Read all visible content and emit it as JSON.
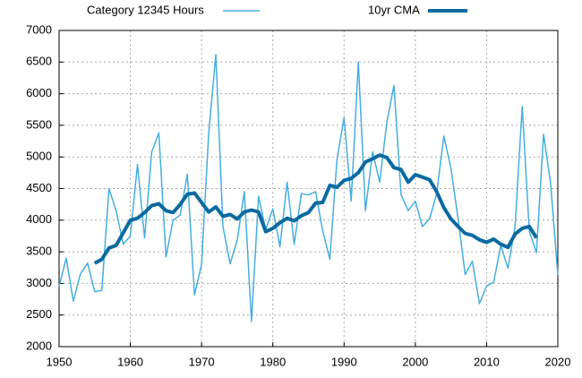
{
  "chart_data": {
    "type": "line",
    "series": [
      {
        "name": "Category 12345 Hours",
        "color": "#45aee0",
        "x": [
          1950,
          1951,
          1952,
          1953,
          1954,
          1955,
          1956,
          1957,
          1958,
          1959,
          1960,
          1961,
          1962,
          1963,
          1964,
          1965,
          1966,
          1967,
          1968,
          1969,
          1970,
          1971,
          1972,
          1973,
          1974,
          1975,
          1976,
          1977,
          1978,
          1979,
          1980,
          1981,
          1982,
          1983,
          1984,
          1985,
          1986,
          1987,
          1988,
          1989,
          1990,
          1991,
          1992,
          1993,
          1994,
          1995,
          1996,
          1997,
          1998,
          1999,
          2000,
          2001,
          2002,
          2003,
          2004,
          2005,
          2006,
          2007,
          2008,
          2009,
          2010,
          2011,
          2012,
          2013,
          2014,
          2015,
          2016,
          2017,
          2018,
          2019,
          2020
        ],
        "values": [
          2950,
          3400,
          2720,
          3150,
          3320,
          2870,
          2890,
          4500,
          4150,
          3620,
          3750,
          4880,
          3720,
          5080,
          5380,
          3420,
          4000,
          4080,
          4730,
          2820,
          3300,
          5380,
          6620,
          3900,
          3310,
          3680,
          4450,
          2400,
          4380,
          3850,
          4180,
          3580,
          4600,
          3620,
          4420,
          4400,
          4450,
          3830,
          3380,
          4960,
          5620,
          4300,
          6500,
          4150,
          5080,
          4600,
          5550,
          6130,
          4400,
          4150,
          4300,
          3900,
          4020,
          4420,
          5330,
          4820,
          4020,
          3140,
          3350,
          2680,
          2960,
          3020,
          3600,
          3240,
          3900,
          5800,
          3820,
          3490,
          5360,
          4570,
          3130
        ]
      },
      {
        "name": "10yr CMA",
        "color": "#0a6aa1",
        "x": [
          1955,
          1956,
          1957,
          1958,
          1959,
          1960,
          1961,
          1962,
          1963,
          1964,
          1965,
          1966,
          1967,
          1968,
          1969,
          1970,
          1971,
          1972,
          1973,
          1974,
          1975,
          1976,
          1977,
          1978,
          1979,
          1980,
          1981,
          1982,
          1983,
          1984,
          1985,
          1986,
          1987,
          1988,
          1989,
          1990,
          1991,
          1992,
          1993,
          1994,
          1995,
          1996,
          1997,
          1998,
          1999,
          2000,
          2001,
          2002,
          2003,
          2004,
          2005,
          2006,
          2007,
          2008,
          2009,
          2010,
          2011,
          2012,
          2013,
          2014,
          2015,
          2016,
          2017
        ],
        "values": [
          3320,
          3380,
          3560,
          3600,
          3800,
          4000,
          4030,
          4120,
          4230,
          4260,
          4150,
          4120,
          4250,
          4410,
          4430,
          4280,
          4130,
          4210,
          4060,
          4090,
          4020,
          4130,
          4160,
          4130,
          3820,
          3870,
          3960,
          4030,
          3990,
          4070,
          4120,
          4270,
          4280,
          4550,
          4520,
          4630,
          4660,
          4750,
          4920,
          4970,
          5030,
          4990,
          4830,
          4800,
          4600,
          4720,
          4680,
          4640,
          4450,
          4200,
          4020,
          3900,
          3790,
          3760,
          3690,
          3650,
          3700,
          3620,
          3570,
          3780,
          3870,
          3900,
          3720
        ]
      }
    ],
    "xlim": [
      1950,
      2020
    ],
    "xticks": [
      1950,
      1960,
      1970,
      1980,
      1990,
      2000,
      2010,
      2020
    ],
    "ylim": [
      2000,
      7000
    ],
    "yticks": [
      2000,
      2500,
      3000,
      3500,
      4000,
      4500,
      5000,
      5500,
      6000,
      6500,
      7000
    ],
    "grid": true
  }
}
